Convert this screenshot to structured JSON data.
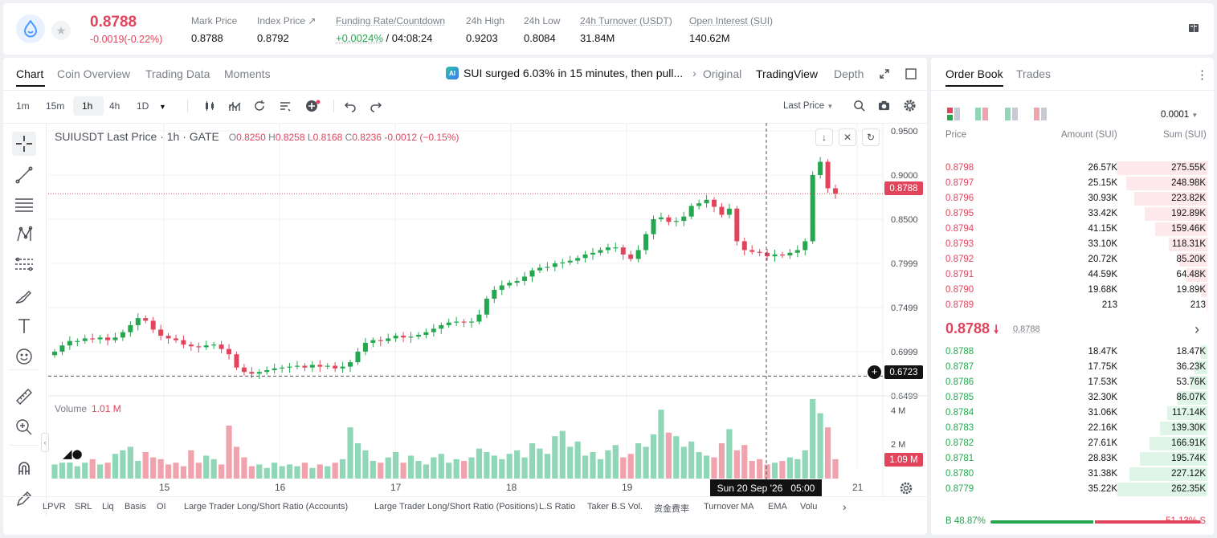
{
  "ticker": {
    "last_price": "0.8788",
    "change": "-0.0019(-0.22%)",
    "stats": [
      {
        "label": "Mark Price",
        "value": "0.8788"
      },
      {
        "label": "Index Price ↗",
        "value": "0.8792"
      },
      {
        "label": "Funding Rate/Countdown",
        "value_green": "+0.0024%",
        "value": "/ 04:08:24"
      },
      {
        "label": "24h High",
        "value": "0.9203"
      },
      {
        "label": "24h Low",
        "value": "0.8084"
      },
      {
        "label": "24h Turnover (USDT)",
        "value": "31.84M"
      },
      {
        "label": "Open Interest (SUI)",
        "value": "140.62M"
      }
    ]
  },
  "chart_panel": {
    "tabs": [
      "Chart",
      "Coin Overview",
      "Trading Data",
      "Moments"
    ],
    "news": "SUI surged 6.03% in 15 minutes, then pull...",
    "ai_badge": "AI",
    "views": [
      "Original",
      "TradingView",
      "Depth"
    ],
    "timeframes": [
      "1m",
      "15m",
      "1h",
      "4h",
      "1D"
    ],
    "price_type": "Last Price",
    "legend_title": "SUIUSDT Last Price · 1h · GATE",
    "ohlc": {
      "o": "0.8250",
      "h": "0.8258",
      "l": "0.8168",
      "c": "0.8236",
      "chg": "-0.0012 (−0.15%)"
    },
    "volume_label": "Volume",
    "volume_value": "1.01 M",
    "cursor_price": "0.6723",
    "last_price_tag": "0.8788",
    "volume_tag": "1.09 M",
    "date_tag_date": "Sun 20 Sep '26",
    "date_tag_time": "05:00",
    "indicators": [
      "LPVR",
      "SRL",
      "Liq",
      "Basis",
      "OI",
      "Large Trader Long/Short Ratio (Accounts)",
      "Large Trader Long/Short Ratio (Positions)",
      "L.S Ratio",
      "Taker B.S Vol.",
      "资金费率",
      "Turnover",
      "MA",
      "EMA",
      "Volu"
    ]
  },
  "chart_data": {
    "type": "candlestick",
    "title": "SUIUSDT Last Price · 1h · GATE",
    "y_ticks": [
      "0.9500",
      "0.9000",
      "0.8500",
      "0.7999",
      "0.7499",
      "0.6999",
      "0.6499"
    ],
    "vol_ticks": [
      "4 M",
      "2 M"
    ],
    "x_ticks": [
      "15",
      "16",
      "17",
      "18",
      "19",
      "21"
    ],
    "ylim": [
      0.6499,
      0.95
    ],
    "approx_close_path": [
      0.7,
      0.707,
      0.712,
      0.712,
      0.715,
      0.714,
      0.716,
      0.713,
      0.716,
      0.722,
      0.73,
      0.738,
      0.735,
      0.725,
      0.718,
      0.715,
      0.713,
      0.708,
      0.706,
      0.705,
      0.707,
      0.708,
      0.703,
      0.697,
      0.682,
      0.677,
      0.675,
      0.677,
      0.679,
      0.681,
      0.682,
      0.683,
      0.684,
      0.682,
      0.685,
      0.683,
      0.684,
      0.681,
      0.683,
      0.688,
      0.7,
      0.71,
      0.713,
      0.712,
      0.715,
      0.718,
      0.716,
      0.717,
      0.719,
      0.722,
      0.726,
      0.73,
      0.733,
      0.734,
      0.733,
      0.734,
      0.742,
      0.76,
      0.77,
      0.775,
      0.778,
      0.78,
      0.785,
      0.792,
      0.795,
      0.796,
      0.8,
      0.801,
      0.803,
      0.806,
      0.81,
      0.812,
      0.815,
      0.818,
      0.818,
      0.81,
      0.805,
      0.815,
      0.833,
      0.85,
      0.852,
      0.847,
      0.848,
      0.853,
      0.865,
      0.868,
      0.872,
      0.864,
      0.855,
      0.862,
      0.825,
      0.815,
      0.813,
      0.812,
      0.808,
      0.81,
      0.809,
      0.812,
      0.815,
      0.825,
      0.9,
      0.915,
      0.885,
      0.879
    ],
    "volume_M": [
      0.8,
      0.9,
      1.0,
      0.7,
      0.9,
      1.1,
      0.8,
      0.9,
      1.4,
      1.6,
      1.8,
      1.0,
      1.5,
      1.2,
      1.1,
      0.8,
      0.9,
      0.7,
      1.6,
      0.9,
      1.3,
      1.1,
      0.8,
      3.0,
      1.8,
      1.2,
      0.7,
      0.8,
      0.6,
      0.9,
      0.7,
      0.8,
      0.7,
      0.9,
      0.6,
      0.8,
      0.7,
      0.9,
      1.1,
      2.9,
      2.0,
      1.6,
      1.0,
      0.9,
      1.2,
      1.5,
      0.9,
      1.3,
      1.0,
      0.8,
      1.2,
      1.4,
      0.9,
      1.1,
      1.0,
      1.2,
      1.7,
      1.5,
      1.3,
      1.1,
      1.4,
      1.6,
      1.2,
      2.0,
      1.7,
      1.4,
      2.4,
      2.7,
      1.8,
      2.1,
      1.3,
      1.5,
      1.1,
      1.6,
      1.9,
      1.2,
      1.4,
      2.0,
      1.8,
      2.5,
      3.9,
      2.6,
      2.4,
      1.8,
      2.1,
      1.5,
      1.3,
      1.2,
      2.0,
      2.8,
      1.6,
      1.9,
      1.0,
      1.1,
      0.8,
      0.9,
      1.0,
      1.2,
      1.1,
      1.6,
      4.5,
      3.7,
      2.9,
      1.1
    ]
  },
  "order_book": {
    "tabs": [
      "Order Book",
      "Trades"
    ],
    "precision": "0.0001",
    "headers": {
      "price": "Price",
      "amount": "Amount (SUI)",
      "sum": "Sum (SUI)"
    },
    "asks": [
      {
        "price": "0.8798",
        "amount": "26.57K",
        "sum": "275.55K",
        "depth": 1.0
      },
      {
        "price": "0.8797",
        "amount": "25.15K",
        "sum": "248.98K",
        "depth": 0.9
      },
      {
        "price": "0.8796",
        "amount": "30.93K",
        "sum": "223.82K",
        "depth": 0.81
      },
      {
        "price": "0.8795",
        "amount": "33.42K",
        "sum": "192.89K",
        "depth": 0.7
      },
      {
        "price": "0.8794",
        "amount": "41.15K",
        "sum": "159.46K",
        "depth": 0.58
      },
      {
        "price": "0.8793",
        "amount": "33.10K",
        "sum": "118.31K",
        "depth": 0.43
      },
      {
        "price": "0.8792",
        "amount": "20.72K",
        "sum": "85.20K",
        "depth": 0.31
      },
      {
        "price": "0.8791",
        "amount": "44.59K",
        "sum": "64.48K",
        "depth": 0.23
      },
      {
        "price": "0.8790",
        "amount": "19.68K",
        "sum": "19.89K",
        "depth": 0.07
      },
      {
        "price": "0.8789",
        "amount": "213",
        "sum": "213",
        "depth": 0.01
      }
    ],
    "mid_price": "0.8788",
    "mark_price": "0.8788",
    "bids": [
      {
        "price": "0.8788",
        "amount": "18.47K",
        "sum": "18.47K",
        "depth": 0.07
      },
      {
        "price": "0.8787",
        "amount": "17.75K",
        "sum": "36.23K",
        "depth": 0.14
      },
      {
        "price": "0.8786",
        "amount": "17.53K",
        "sum": "53.76K",
        "depth": 0.2
      },
      {
        "price": "0.8785",
        "amount": "32.30K",
        "sum": "86.07K",
        "depth": 0.33
      },
      {
        "price": "0.8784",
        "amount": "31.06K",
        "sum": "117.14K",
        "depth": 0.45
      },
      {
        "price": "0.8783",
        "amount": "22.16K",
        "sum": "139.30K",
        "depth": 0.53
      },
      {
        "price": "0.8782",
        "amount": "27.61K",
        "sum": "166.91K",
        "depth": 0.64
      },
      {
        "price": "0.8781",
        "amount": "28.83K",
        "sum": "195.74K",
        "depth": 0.75
      },
      {
        "price": "0.8780",
        "amount": "31.38K",
        "sum": "227.12K",
        "depth": 0.87
      },
      {
        "price": "0.8779",
        "amount": "35.22K",
        "sum": "262.35K",
        "depth": 1.0
      }
    ],
    "buy_ratio_label": "B",
    "buy_ratio": "48.87%",
    "sell_ratio": "51.13%",
    "sell_ratio_label": "S",
    "buy_fraction": 0.4887
  },
  "colors": {
    "up": "#25a750",
    "down": "#e2445c",
    "up_bar": "#8fd7b6",
    "down_bar": "#f1a3ad"
  }
}
